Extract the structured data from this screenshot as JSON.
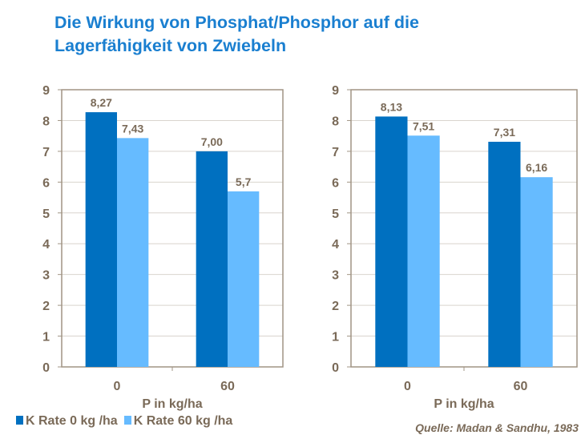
{
  "title": "Die Wirkung von Phosphat/Phosphor auf die Lagerfähigkeit von Zwiebeln",
  "source": "Quelle: Madan & Sandhu, 1983",
  "legend": [
    {
      "label": "K Rate 0 kg /ha",
      "color": "#0070c0"
    },
    {
      "label": "K Rate 60 kg /ha",
      "color": "#66bbff"
    }
  ],
  "chart_data": [
    {
      "type": "bar",
      "categories": [
        "0",
        "60"
      ],
      "xlabel": "P in kg/ha",
      "ylabel": "",
      "ylim": [
        0,
        9
      ],
      "yticks": [
        0,
        1,
        2,
        3,
        4,
        5,
        6,
        7,
        8,
        9
      ],
      "grid": true,
      "series": [
        {
          "name": "K Rate 0 kg /ha",
          "values": [
            8.27,
            7.0
          ],
          "labels": [
            "8,27",
            "7,00"
          ]
        },
        {
          "name": "K Rate 60 kg /ha",
          "values": [
            7.43,
            5.7
          ],
          "labels": [
            "7,43",
            "5,7"
          ]
        }
      ]
    },
    {
      "type": "bar",
      "categories": [
        "0",
        "60"
      ],
      "xlabel": "P in kg/ha",
      "ylabel": "",
      "ylim": [
        0,
        9
      ],
      "yticks": [
        0,
        1,
        2,
        3,
        4,
        5,
        6,
        7,
        8,
        9
      ],
      "grid": true,
      "series": [
        {
          "name": "K Rate 0 kg /ha",
          "values": [
            8.13,
            7.31
          ],
          "labels": [
            "8,13",
            "7,31"
          ]
        },
        {
          "name": "K Rate 60 kg /ha",
          "values": [
            7.51,
            6.16
          ],
          "labels": [
            "7,51",
            "6,16"
          ]
        }
      ]
    }
  ]
}
